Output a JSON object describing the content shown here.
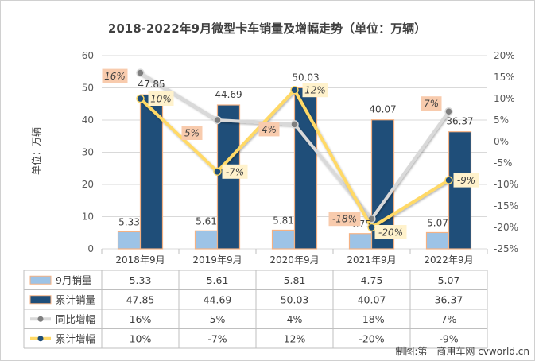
{
  "chart_data": {
    "type": "bar+line",
    "title": "2018-2022年9月微型卡车销量及增幅走势（单位：万辆）",
    "ylabel": "单位：万辆",
    "categories": [
      "2018年9月",
      "2019年9月",
      "2020年9月",
      "2021年9月",
      "2022年9月"
    ],
    "left_axis": {
      "range": [
        0,
        60
      ],
      "ticks": [
        "0",
        "10",
        "20",
        "30",
        "40",
        "50",
        "60"
      ]
    },
    "right_axis": {
      "range": [
        -25,
        20
      ],
      "ticks": [
        "20%",
        "15%",
        "10%",
        "5%",
        "0%",
        "-5%",
        "-10%",
        "-15%",
        "-20%",
        "-25%"
      ]
    },
    "series": [
      {
        "name": "9月销量",
        "kind": "bar",
        "axis": "left",
        "color": "#9DC3E6",
        "values": [
          5.33,
          5.61,
          5.81,
          4.75,
          5.07
        ],
        "labels": [
          "5.33",
          "5.61",
          "5.81",
          "4.75",
          "5.07"
        ],
        "table": [
          "5.33",
          "5.61",
          "5.81",
          "4.75",
          "5.07"
        ]
      },
      {
        "name": "累计销量",
        "kind": "bar",
        "axis": "left",
        "color": "#1F4E79",
        "values": [
          47.85,
          44.69,
          50.03,
          40.07,
          36.37
        ],
        "labels": [
          "47.85",
          "44.69",
          "50.03",
          "40.07",
          "36.37"
        ],
        "table": [
          "47.85",
          "44.69",
          "50.03",
          "40.07",
          "36.37"
        ]
      },
      {
        "name": "同比增幅",
        "kind": "line",
        "axis": "right",
        "color": "#D9D9D9",
        "values": [
          16,
          5,
          4,
          -18,
          7
        ],
        "labels": [
          "16%",
          "5%",
          "4%",
          "-18%",
          "7%"
        ],
        "table": [
          "16%",
          "5%",
          "4%",
          "-18%",
          "7%"
        ]
      },
      {
        "name": "累计增幅",
        "kind": "line",
        "axis": "right",
        "color": "#FFD966",
        "values": [
          10,
          -7,
          12,
          -20,
          -9
        ],
        "labels": [
          "10%",
          "-7%",
          "12%",
          "-20%",
          "-9%"
        ],
        "table": [
          "10%",
          "-7%",
          "12%",
          "-20%",
          "-9%"
        ]
      }
    ],
    "legend": "data-table",
    "footer": "制图:第一商用车网 cvworld.cn"
  }
}
